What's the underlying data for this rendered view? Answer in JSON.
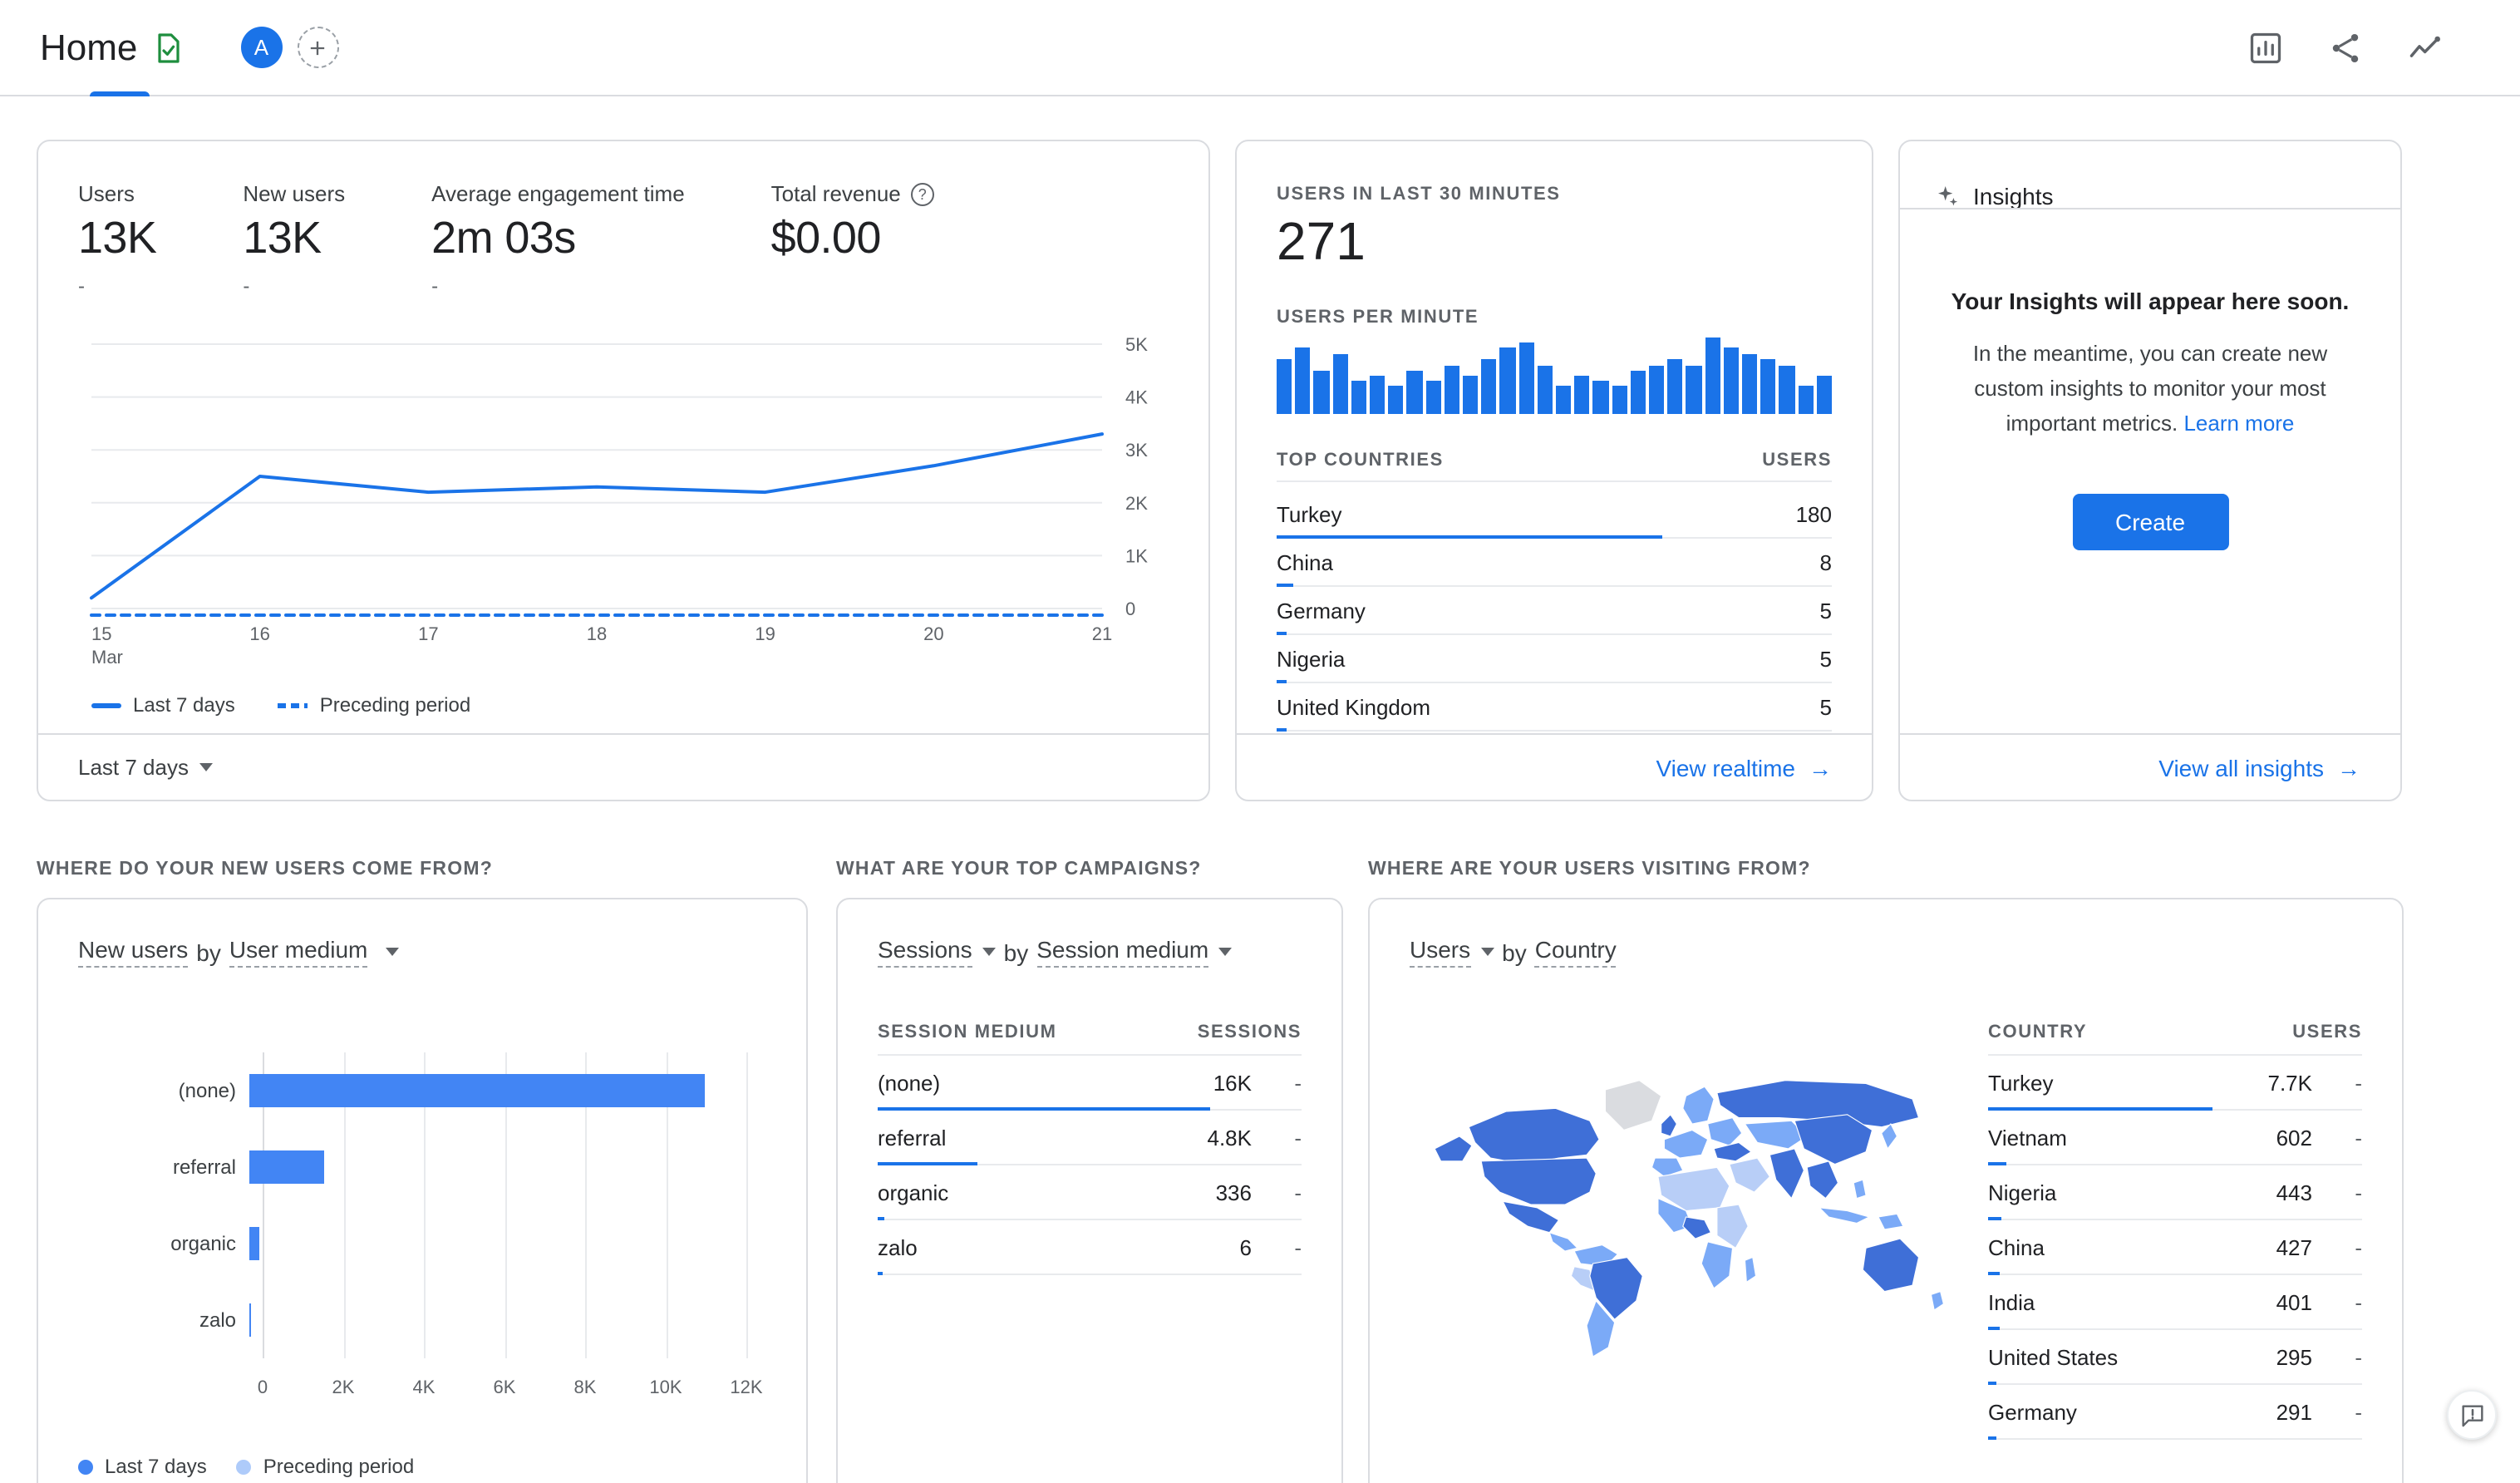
{
  "colors": {
    "accent": "#1a73e8",
    "chart_bar_blue": "#4285f4",
    "chart_light_blue": "#aecbfa",
    "map_dark": "#3f6fd7",
    "map_medium": "#7baaf7",
    "map_light": "#b8cef7",
    "map_nodata": "#dadce0",
    "border": "#dadce0",
    "green": "#1e8e3e"
  },
  "header": {
    "title": "Home",
    "avatar_letter": "A"
  },
  "overview_card": {
    "metrics": [
      {
        "label": "Users",
        "value": "13K",
        "delta": "-"
      },
      {
        "label": "New users",
        "value": "13K",
        "delta": "-"
      },
      {
        "label": "Average engagement time",
        "value": "2m 03s",
        "delta": "-"
      },
      {
        "label": "Total revenue",
        "value": "$0.00",
        "delta": ""
      }
    ],
    "help_glyph": "?",
    "chart_data": {
      "type": "line",
      "x": [
        "15",
        "16",
        "17",
        "18",
        "19",
        "20",
        "21"
      ],
      "x_first_sub": "Mar",
      "series": [
        {
          "name": "Last 7 days",
          "style": "solid",
          "values": [
            200,
            2500,
            2200,
            2300,
            2200,
            2700,
            3300
          ]
        },
        {
          "name": "Preceding period",
          "style": "dashed",
          "values": [
            0,
            0,
            0,
            0,
            0,
            0,
            0
          ]
        }
      ],
      "ylim": [
        0,
        5000
      ],
      "ytick_labels": [
        "5K",
        "4K",
        "3K",
        "2K",
        "1K",
        "0"
      ]
    },
    "legend": [
      {
        "label": "Last 7 days"
      },
      {
        "label": "Preceding period"
      }
    ],
    "footer_dropdown": "Last 7 days"
  },
  "realtime_card": {
    "title": "USERS IN LAST 30 MINUTES",
    "value": "271",
    "chart_title": "USERS PER MINUTE",
    "chart_data": {
      "type": "bar",
      "values": [
        10,
        12,
        8,
        11,
        6,
        7,
        5,
        8,
        6,
        9,
        7,
        10,
        12,
        13,
        9,
        5,
        7,
        6,
        5,
        8,
        9,
        10,
        9,
        14,
        12,
        11,
        10,
        9,
        5,
        7
      ]
    },
    "countries_table": {
      "col_country": "TOP COUNTRIES",
      "col_users": "USERS",
      "rows": [
        {
          "country": "Turkey",
          "users": "180",
          "num": 180
        },
        {
          "country": "China",
          "users": "8",
          "num": 8
        },
        {
          "country": "Germany",
          "users": "5",
          "num": 5
        },
        {
          "country": "Nigeria",
          "users": "5",
          "num": 5
        },
        {
          "country": "United Kingdom",
          "users": "5",
          "num": 5
        }
      ]
    },
    "link": "View realtime",
    "arrow": "→"
  },
  "insights_card": {
    "title": "Insights",
    "headline": "Your Insights will appear here soon.",
    "body": "In the meantime, you can create new custom insights to monitor your most important metrics.",
    "learn_more": "Learn more",
    "create_button": "Create",
    "footer_link": "View all insights",
    "arrow": "→"
  },
  "new_users_section": {
    "header": "WHERE DO YOUR NEW USERS COME FROM?",
    "metric_label": "New users",
    "by_word": "by",
    "dim_label": "User medium",
    "chart_data": {
      "type": "bar-horizontal",
      "categories": [
        "(none)",
        "referral",
        "organic",
        "zalo"
      ],
      "values": [
        11000,
        1800,
        250,
        10
      ],
      "xlim": [
        0,
        12000
      ],
      "xtick_labels": [
        "0",
        "2K",
        "4K",
        "6K",
        "8K",
        "10K",
        "12K"
      ]
    },
    "legend": [
      {
        "label": "Last 7 days"
      },
      {
        "label": "Preceding period"
      }
    ]
  },
  "campaigns_section": {
    "header": "WHAT ARE YOUR TOP CAMPAIGNS?",
    "metric_label": "Sessions",
    "by_word": "by",
    "dim_label": "Session medium",
    "table": {
      "col_medium": "SESSION MEDIUM",
      "col_sessions": "SESSIONS",
      "rows": [
        {
          "medium": "(none)",
          "sessions": "16K",
          "delta": "-",
          "num": 16000
        },
        {
          "medium": "referral",
          "sessions": "4.8K",
          "delta": "-",
          "num": 4800
        },
        {
          "medium": "organic",
          "sessions": "336",
          "delta": "-",
          "num": 336
        },
        {
          "medium": "zalo",
          "sessions": "6",
          "delta": "-",
          "num": 6
        }
      ]
    }
  },
  "visitors_section": {
    "header": "WHERE ARE YOUR USERS VISITING FROM?",
    "metric_label": "Users",
    "by_word": "by",
    "dim_label": "Country",
    "chart_data": {
      "type": "choropleth",
      "countries": [
        "Turkey",
        "Vietnam",
        "Nigeria",
        "China",
        "India",
        "United States",
        "Germany"
      ],
      "values": [
        7700,
        602,
        443,
        427,
        401,
        295,
        291
      ]
    },
    "table": {
      "col_country": "COUNTRY",
      "col_users": "USERS",
      "rows": [
        {
          "country": "Turkey",
          "users": "7.7K",
          "delta": "-",
          "num": 7700
        },
        {
          "country": "Vietnam",
          "users": "602",
          "delta": "-",
          "num": 602
        },
        {
          "country": "Nigeria",
          "users": "443",
          "delta": "-",
          "num": 443
        },
        {
          "country": "China",
          "users": "427",
          "delta": "-",
          "num": 427
        },
        {
          "country": "India",
          "users": "401",
          "delta": "-",
          "num": 401
        },
        {
          "country": "United States",
          "users": "295",
          "delta": "-",
          "num": 295
        },
        {
          "country": "Germany",
          "users": "291",
          "delta": "-",
          "num": 291
        }
      ]
    }
  }
}
